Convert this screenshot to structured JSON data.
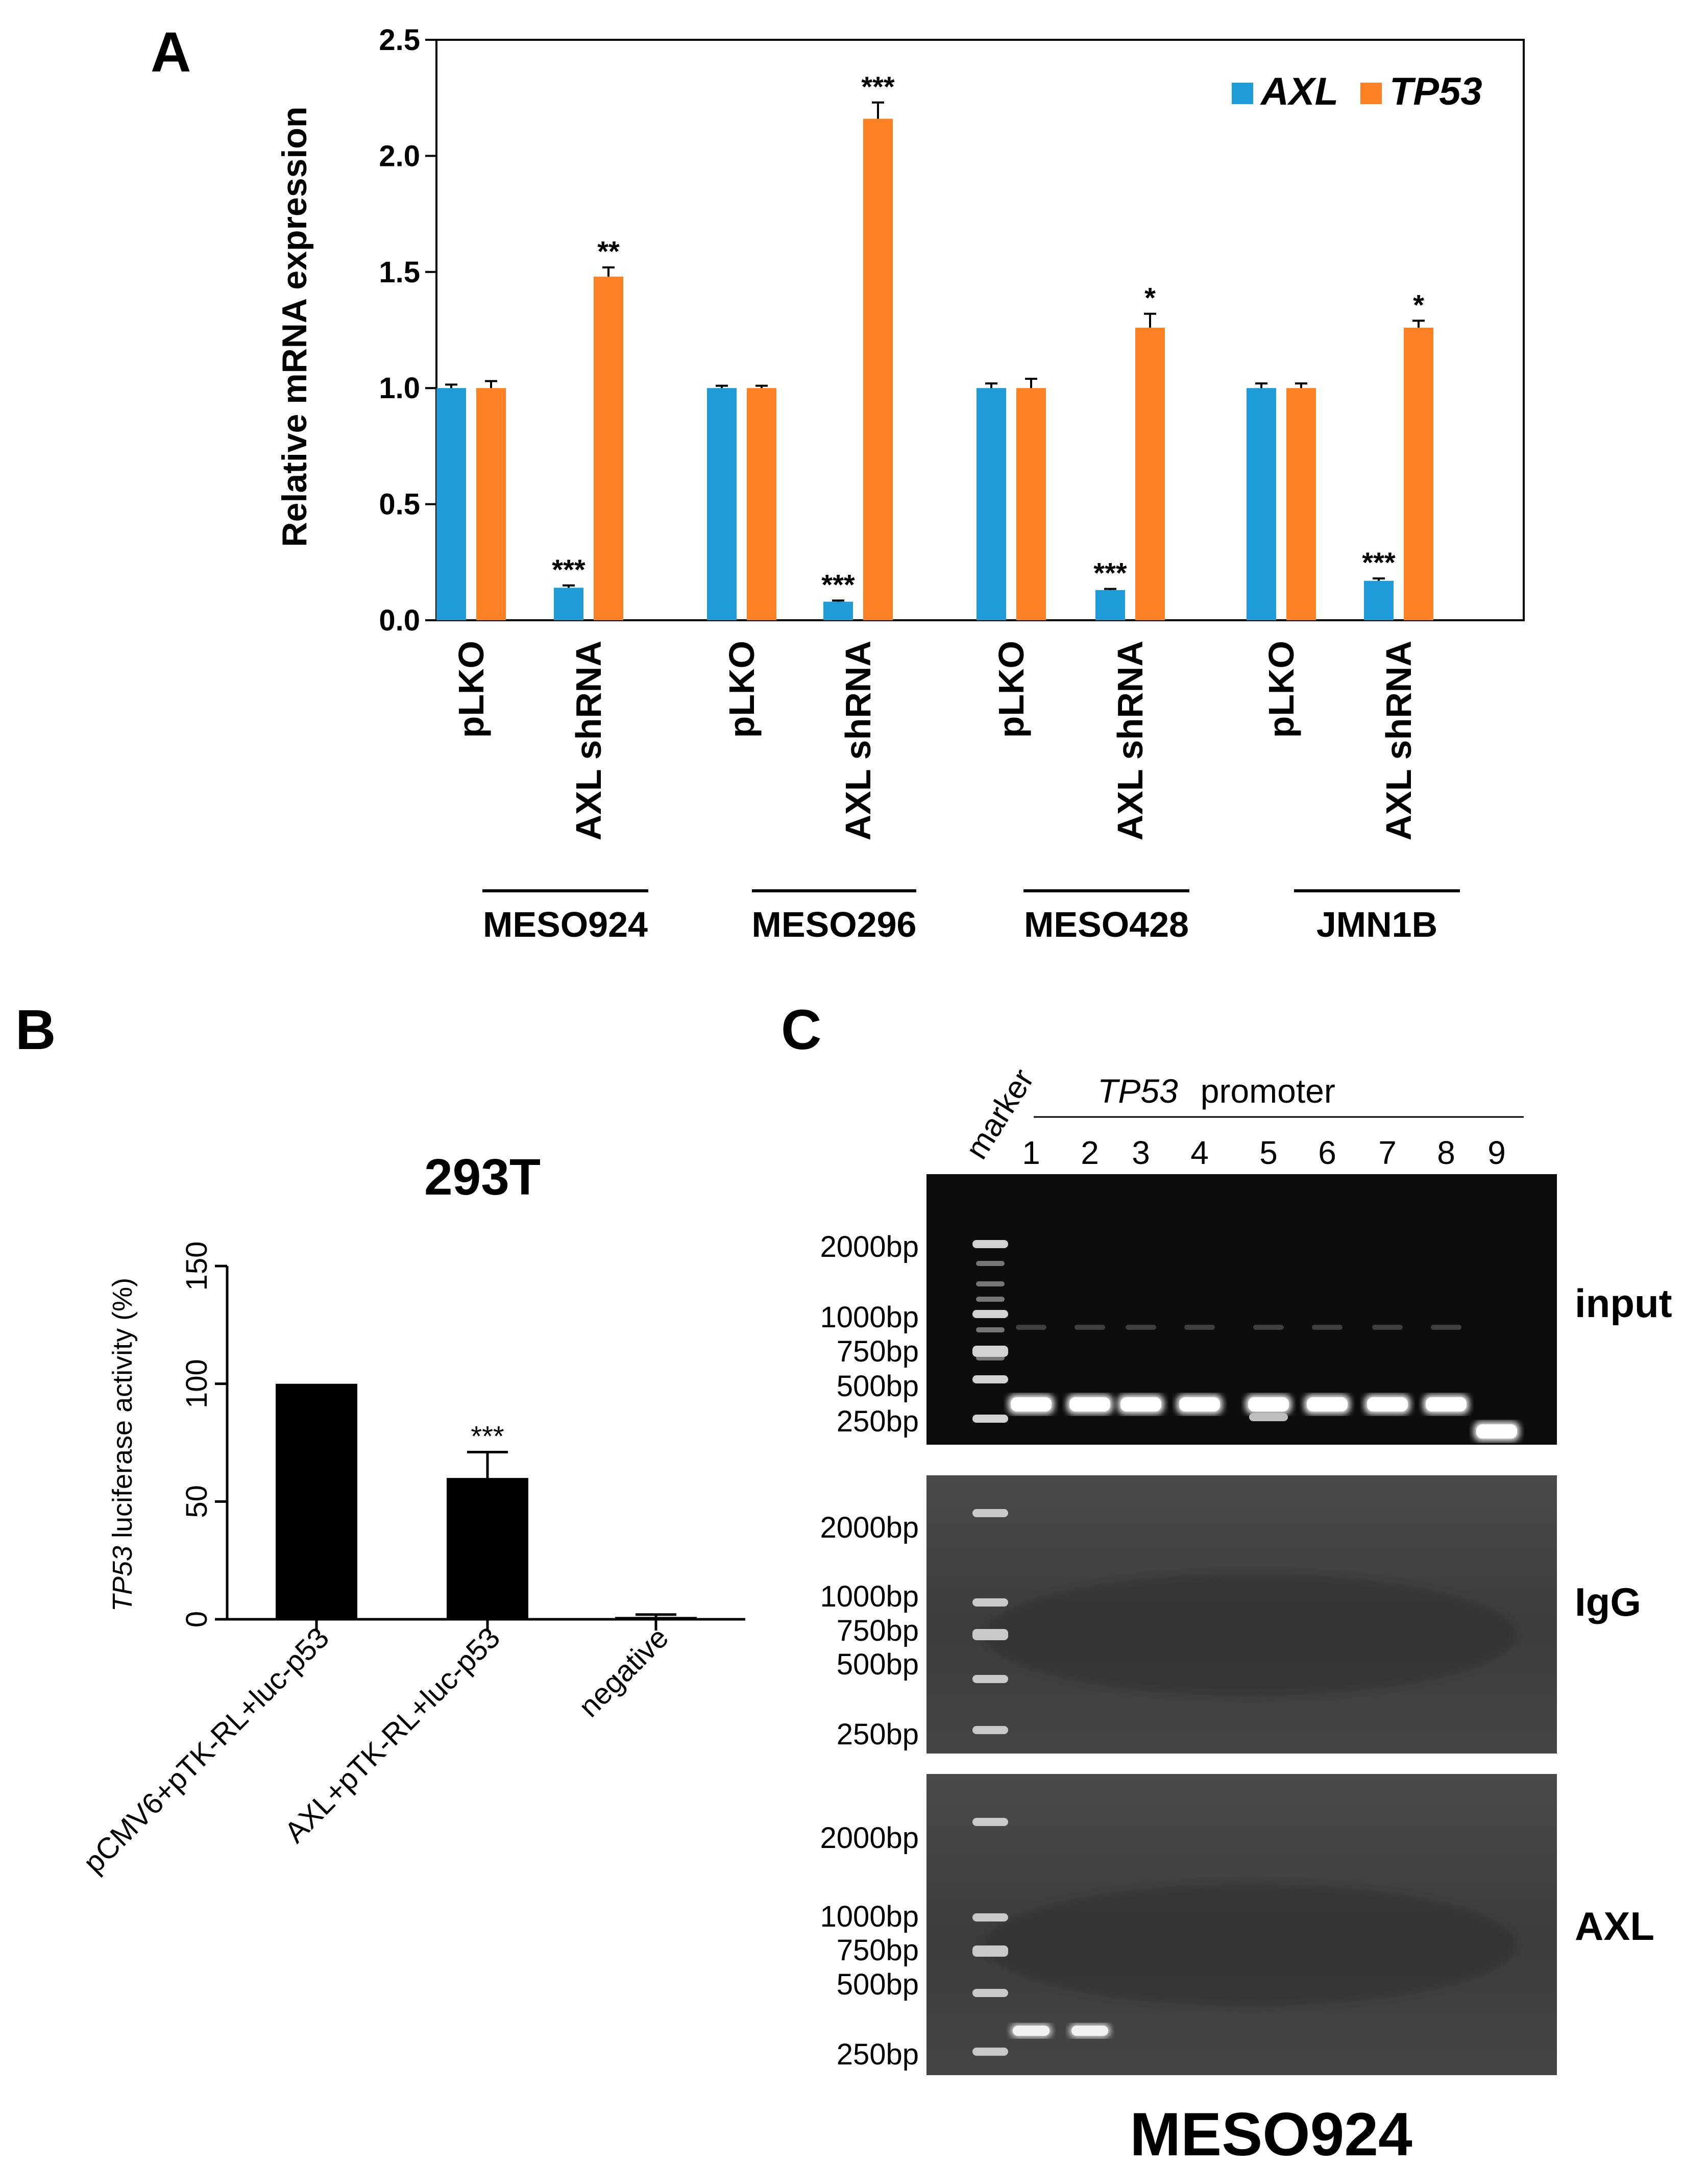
{
  "panels": {
    "a": "A",
    "b": "B",
    "c": "C"
  },
  "chart_data": [
    {
      "type": "bar",
      "panel": "A",
      "title": "",
      "ylabel": "Relative mRNA expression",
      "ylim": [
        0,
        2.5
      ],
      "yticks": [
        "0.0",
        "0.5",
        "1.0",
        "1.5",
        "2.0",
        "2.5"
      ],
      "categories": [
        "pLKO",
        "AXL shRNA",
        "pLKO",
        "AXL shRNA",
        "pLKO",
        "AXL shRNA",
        "pLKO",
        "AXL shRNA"
      ],
      "groups": [
        "MESO924",
        "MESO296",
        "MESO428",
        "JMN1B"
      ],
      "legend": {
        "placement": "top-right"
      },
      "series": [
        {
          "name": "AXL",
          "color": "#1f9bd7",
          "values": [
            1.0,
            0.14,
            1.0,
            0.08,
            1.0,
            0.13,
            1.0,
            0.17
          ],
          "errors": [
            0.015,
            0.01,
            0.01,
            0.005,
            0.02,
            0.005,
            0.02,
            0.01
          ],
          "annotations": [
            "",
            "***",
            "",
            "***",
            "",
            "***",
            "",
            "***"
          ]
        },
        {
          "name": "TP53",
          "color": "#ff8022",
          "values": [
            1.0,
            1.48,
            1.0,
            2.16,
            1.0,
            1.26,
            1.0,
            1.26
          ],
          "errors": [
            0.03,
            0.04,
            0.01,
            0.07,
            0.04,
            0.06,
            0.02,
            0.03
          ],
          "annotations": [
            "",
            "**",
            "",
            "***",
            "",
            "*",
            "",
            "*"
          ]
        }
      ]
    },
    {
      "type": "bar",
      "panel": "B",
      "title": "293T",
      "ylabel_italic": "TP53",
      "ylabel_rest": " luciferase activity (%)",
      "ylim": [
        0,
        150
      ],
      "yticks": [
        "0",
        "50",
        "100",
        "150"
      ],
      "categories": [
        "pCMV6+pTK-RL+luc-p53",
        "AXL+pTK-RL+luc-p53",
        "negative"
      ],
      "values": [
        100,
        60,
        1
      ],
      "errors": [
        0,
        11,
        1
      ],
      "annotations": [
        "",
        "***",
        ""
      ],
      "color": "#000000"
    }
  ],
  "gel": {
    "marker_label": "marker",
    "header_italic": "TP53",
    "header_rest": "promoter",
    "lanes": [
      "1",
      "2",
      "3",
      "4",
      "5",
      "6",
      "7",
      "8",
      "9"
    ],
    "size_labels": [
      "2000bp",
      "1000bp",
      "750bp",
      "500bp",
      "250bp"
    ],
    "rows": [
      {
        "label": "input",
        "bands": [
          1,
          1,
          1,
          1,
          1,
          1,
          1,
          1,
          1
        ]
      },
      {
        "label": "IgG",
        "bands": [
          0,
          0,
          0,
          0,
          0,
          0,
          0,
          0,
          0
        ]
      },
      {
        "label": "AXL",
        "bands": [
          1,
          1,
          0,
          0,
          0,
          0,
          0,
          0,
          0
        ]
      }
    ],
    "cell_line": "MESO924"
  }
}
